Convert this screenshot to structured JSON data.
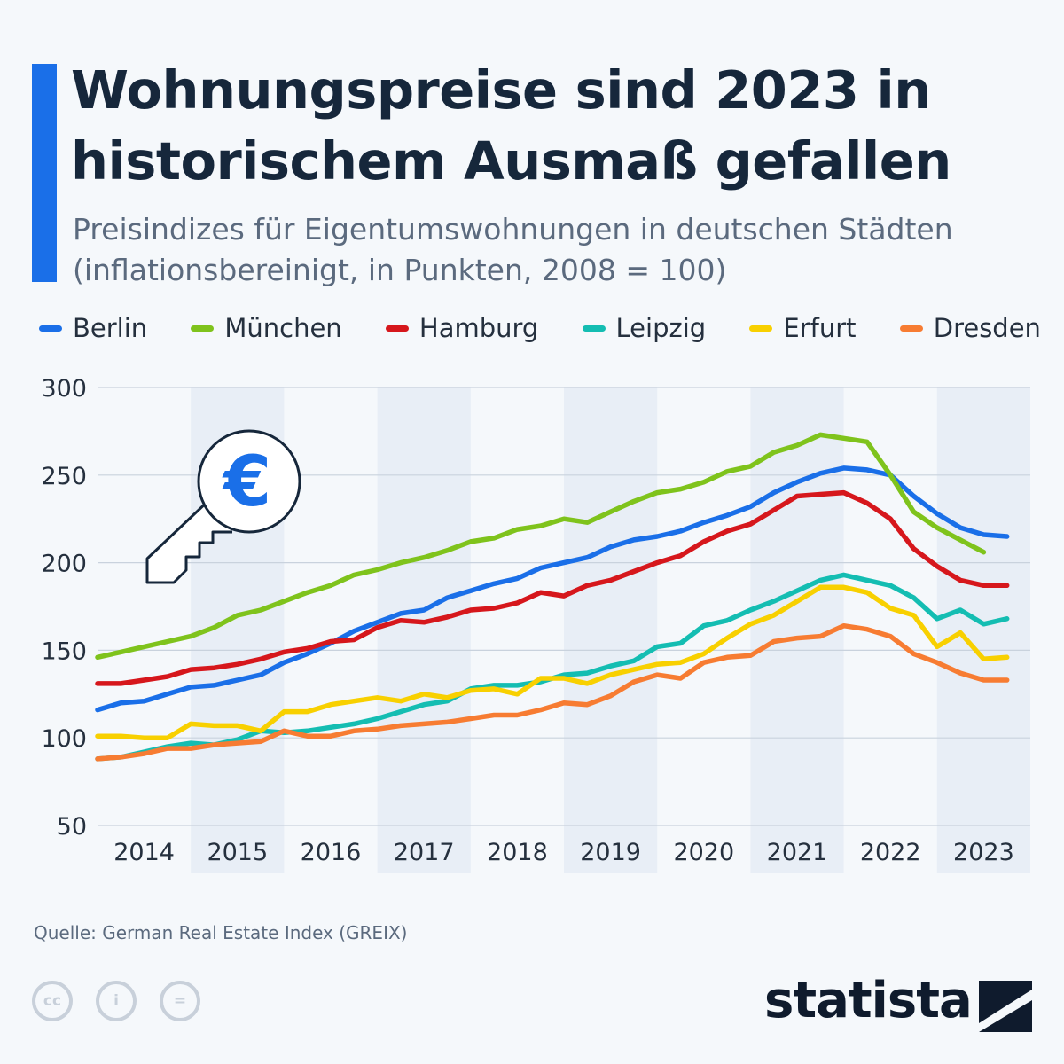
{
  "header": {
    "title": "Wohnungspreise sind 2023 in historischem Ausmaß gefallen",
    "subtitle": "Preisindizes für Eigentumswohnungen in deutschen Städten (inflationsbereinigt, in Punkten, 2008 = 100)"
  },
  "footer": {
    "source": "Quelle: German Real Estate Index (GREIX)",
    "brand": "statista",
    "cc_labels": [
      "cc",
      "i",
      "="
    ]
  },
  "icons": {
    "key": "euro-key-icon",
    "euro_symbol": "€"
  },
  "colors": {
    "accent": "#1a6fe8",
    "band": "#e8eef6",
    "grid": "#c9d2dd"
  },
  "chart_data": {
    "type": "line",
    "title": "Wohnungspreise sind 2023 in historischem Ausmaß gefallen",
    "ylim": [
      50,
      300
    ],
    "yticks": [
      50,
      100,
      150,
      200,
      250,
      300
    ],
    "xlim": [
      2014.0,
      2024.0
    ],
    "categories": [
      "2014",
      "2015",
      "2016",
      "2017",
      "2018",
      "2019",
      "2020",
      "2021",
      "2022",
      "2023"
    ],
    "grid": true,
    "legend_position": "top",
    "x": [
      2014.0,
      2014.25,
      2014.5,
      2014.75,
      2015.0,
      2015.25,
      2015.5,
      2015.75,
      2016.0,
      2016.25,
      2016.5,
      2016.75,
      2017.0,
      2017.25,
      2017.5,
      2017.75,
      2018.0,
      2018.25,
      2018.5,
      2018.75,
      2019.0,
      2019.25,
      2019.5,
      2019.75,
      2020.0,
      2020.25,
      2020.5,
      2020.75,
      2021.0,
      2021.25,
      2021.5,
      2021.75,
      2022.0,
      2022.25,
      2022.5,
      2022.75,
      2023.0,
      2023.25,
      2023.5,
      2023.75
    ],
    "series": [
      {
        "name": "Berlin",
        "color": "#1a6fe8",
        "values": [
          116,
          120,
          121,
          125,
          129,
          130,
          133,
          136,
          143,
          148,
          154,
          161,
          166,
          171,
          173,
          180,
          184,
          188,
          191,
          197,
          200,
          203,
          209,
          213,
          215,
          218,
          223,
          227,
          232,
          240,
          246,
          251,
          254,
          253,
          250,
          238,
          228,
          220,
          216,
          215
        ]
      },
      {
        "name": "München",
        "color": "#7fc31c",
        "values": [
          146,
          149,
          152,
          155,
          158,
          163,
          170,
          173,
          178,
          183,
          187,
          193,
          196,
          200,
          203,
          207,
          212,
          214,
          219,
          221,
          225,
          223,
          229,
          235,
          240,
          242,
          246,
          252,
          255,
          263,
          267,
          273,
          271,
          269,
          250,
          229,
          220,
          213,
          206,
          null
        ]
      },
      {
        "name": "Hamburg",
        "color": "#d6171c",
        "values": [
          131,
          131,
          133,
          135,
          139,
          140,
          142,
          145,
          149,
          151,
          155,
          156,
          163,
          167,
          166,
          169,
          173,
          174,
          177,
          183,
          181,
          187,
          190,
          195,
          200,
          204,
          212,
          218,
          222,
          230,
          238,
          239,
          240,
          234,
          225,
          208,
          198,
          190,
          187,
          187
        ]
      },
      {
        "name": "Leipzig",
        "color": "#14bdb2",
        "values": [
          88,
          89,
          92,
          95,
          97,
          96,
          99,
          104,
          103,
          104,
          106,
          108,
          111,
          115,
          119,
          121,
          128,
          130,
          130,
          132,
          136,
          137,
          141,
          144,
          152,
          154,
          164,
          167,
          173,
          178,
          184,
          190,
          193,
          190,
          187,
          180,
          168,
          173,
          165,
          168
        ]
      },
      {
        "name": "Erfurt",
        "color": "#f8d000",
        "values": [
          101,
          101,
          100,
          100,
          108,
          107,
          107,
          104,
          115,
          115,
          119,
          121,
          123,
          121,
          125,
          123,
          127,
          128,
          125,
          134,
          134,
          131,
          136,
          139,
          142,
          143,
          148,
          157,
          165,
          170,
          178,
          186,
          186,
          183,
          174,
          170,
          152,
          160,
          145,
          146
        ]
      },
      {
        "name": "Dresden",
        "color": "#f77c32",
        "values": [
          88,
          89,
          91,
          94,
          94,
          96,
          97,
          98,
          104,
          101,
          101,
          104,
          105,
          107,
          108,
          109,
          111,
          113,
          113,
          116,
          120,
          119,
          124,
          132,
          136,
          134,
          143,
          146,
          147,
          155,
          157,
          158,
          164,
          162,
          158,
          148,
          143,
          137,
          133,
          133
        ]
      }
    ]
  }
}
